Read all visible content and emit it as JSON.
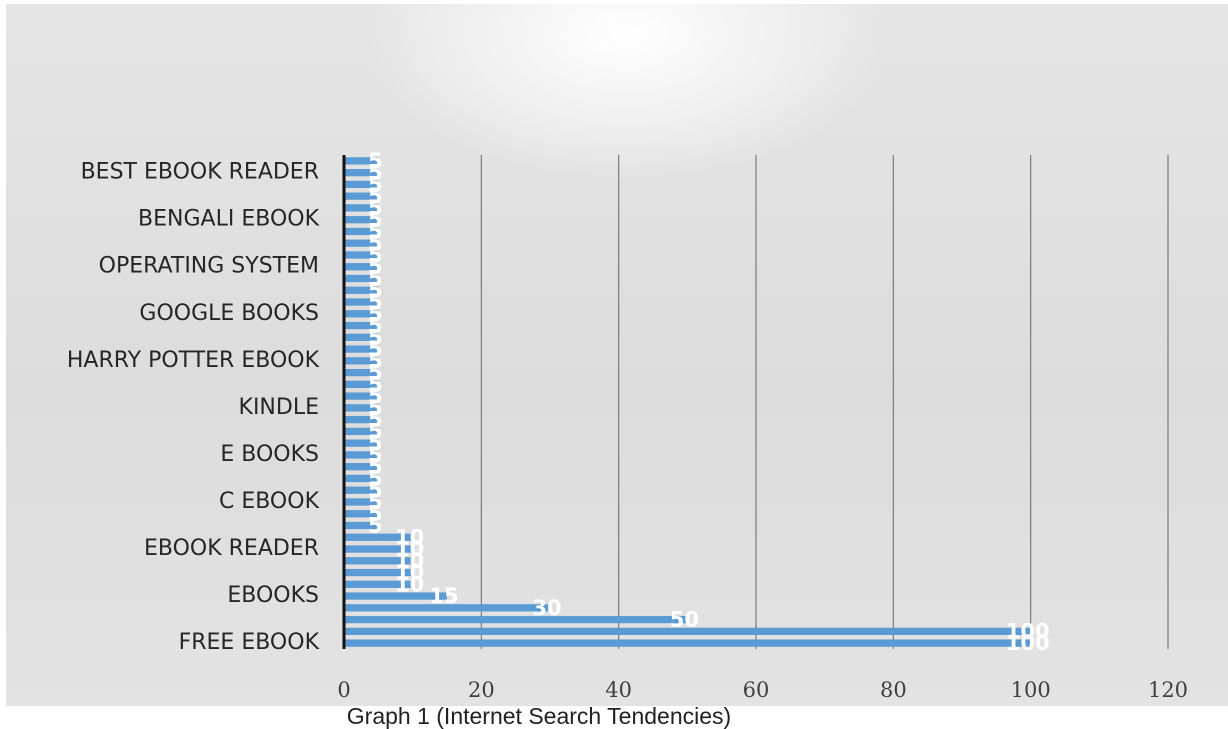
{
  "caption": "Graph 1 (Internet Search Tendencies)",
  "chart_data": {
    "type": "bar",
    "orientation": "horizontal",
    "categories": [
      "FREE EBOOK",
      "",
      "",
      "",
      "EBOOKS",
      "",
      "",
      "",
      "EBOOK READER",
      "",
      "",
      "",
      "C EBOOK",
      "",
      "",
      "",
      "E BOOKS",
      "",
      "",
      "",
      "KINDLE",
      "",
      "",
      "",
      "HARRY POTTER EBOOK",
      "",
      "",
      "",
      "GOOGLE BOOKS",
      "",
      "",
      "",
      "OPERATING SYSTEM",
      "",
      "",
      "",
      "BENGALI EBOOK",
      "",
      "",
      "",
      "BEST EBOOK READER",
      ""
    ],
    "values": [
      100,
      100,
      50,
      30,
      15,
      10,
      10,
      10,
      10,
      10,
      5,
      5,
      5,
      5,
      5,
      5,
      5,
      5,
      5,
      5,
      5,
      5,
      5,
      5,
      5,
      5,
      5,
      5,
      5,
      5,
      5,
      5,
      5,
      5,
      5,
      5,
      5,
      5,
      5,
      5,
      5,
      5
    ],
    "xlim": [
      0,
      120
    ],
    "xticks": [
      0,
      20,
      40,
      60,
      80,
      100,
      120
    ],
    "grid": true,
    "bar_color": "#5b9bd5",
    "data_labels": true,
    "label_color": "#ffffff"
  }
}
